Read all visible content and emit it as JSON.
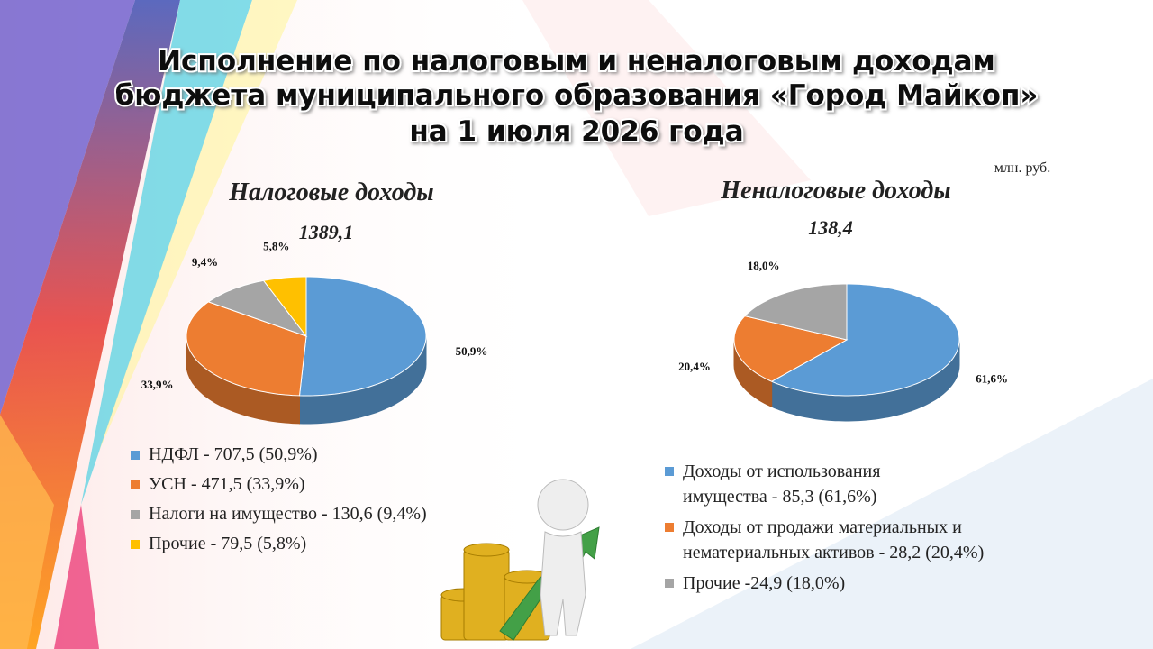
{
  "title": [
    "Исполнение по налоговым и неналоговым доходам",
    "бюджета муниципального образования «Город Майкоп»",
    "на 1 июля 2026 года"
  ],
  "unit": "млн. руб.",
  "chart_data": [
    {
      "type": "pie",
      "title": "Налоговые доходы",
      "subtitle": "1389,1",
      "categories": [
        "НДФЛ - 707,5 (50,9%)",
        "УСН - 471,5 (33,9%)",
        "Налоги на имущество - 130,6 (9,4%)",
        "Прочие - 79,5 (5,8%)"
      ],
      "values": [
        50.9,
        33.9,
        9.4,
        5.8
      ],
      "value_labels": [
        "50,9%",
        "33,9%",
        "9,4%",
        "5,8%"
      ],
      "colors": [
        "#5b9bd5",
        "#ed7d31",
        "#a5a5a5",
        "#ffc000"
      ]
    },
    {
      "type": "pie",
      "title": "Неналоговые доходы",
      "subtitle": "138,4",
      "categories": [
        "Доходы от использования\nимущества - 85,3 (61,6%)",
        "Доходы от продажи материальных и\nнематериальных активов - 28,2 (20,4%)",
        "Прочие -24,9 (18,0%)"
      ],
      "values": [
        61.6,
        20.4,
        18.0
      ],
      "value_labels": [
        "61,6%",
        "20,4%",
        "18,0%"
      ],
      "colors": [
        "#5b9bd5",
        "#ed7d31",
        "#a5a5a5"
      ]
    }
  ]
}
